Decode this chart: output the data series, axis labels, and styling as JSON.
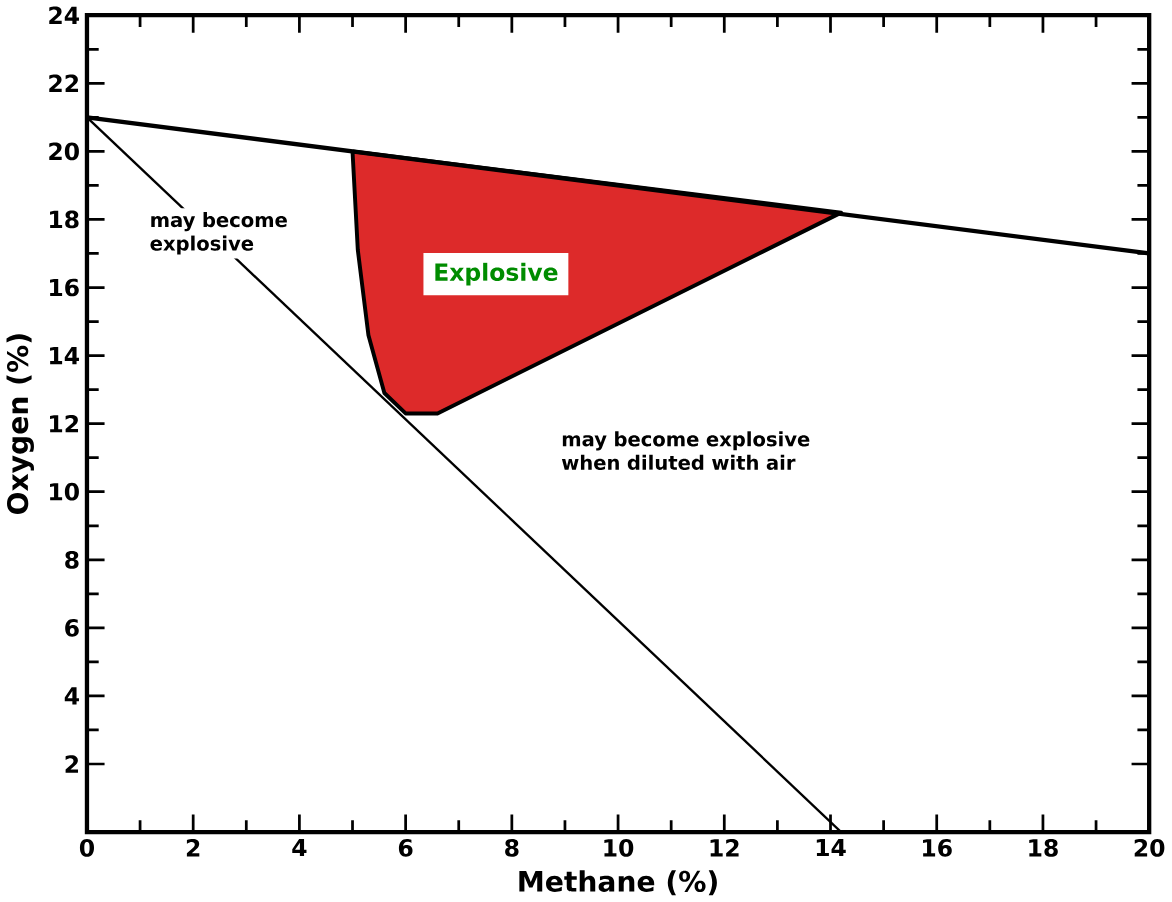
{
  "chart_data": {
    "type": "line",
    "xlabel": "Methane (%)",
    "ylabel": "Oxygen (%)",
    "xlim": [
      0,
      20
    ],
    "ylim": [
      0,
      24
    ],
    "xticks": [
      0,
      2,
      4,
      6,
      8,
      10,
      12,
      14,
      16,
      18,
      20
    ],
    "yticks": [
      2,
      4,
      6,
      8,
      10,
      12,
      14,
      16,
      18,
      20,
      22,
      24
    ],
    "grid": false,
    "marker": "none",
    "series": [
      {
        "type": "area",
        "color": "#dd2a2a",
        "x": [
          5.0,
          5.1,
          5.3,
          5.6,
          6.0,
          6.6,
          14.2,
          5.0
        ],
        "values": [
          20.0,
          17.1,
          14.6,
          12.9,
          12.3,
          12.3,
          18.2,
          20.0
        ]
      },
      {
        "color": "#000000",
        "x": [
          0,
          20
        ],
        "values": [
          21.0,
          17.0
        ]
      },
      {
        "color": "#000000",
        "x": [
          0,
          14.2
        ],
        "values": [
          21.0,
          0
        ]
      }
    ],
    "annotations": [
      "may become explosive",
      "Explosive",
      "may become explosive when diluted with air"
    ]
  }
}
